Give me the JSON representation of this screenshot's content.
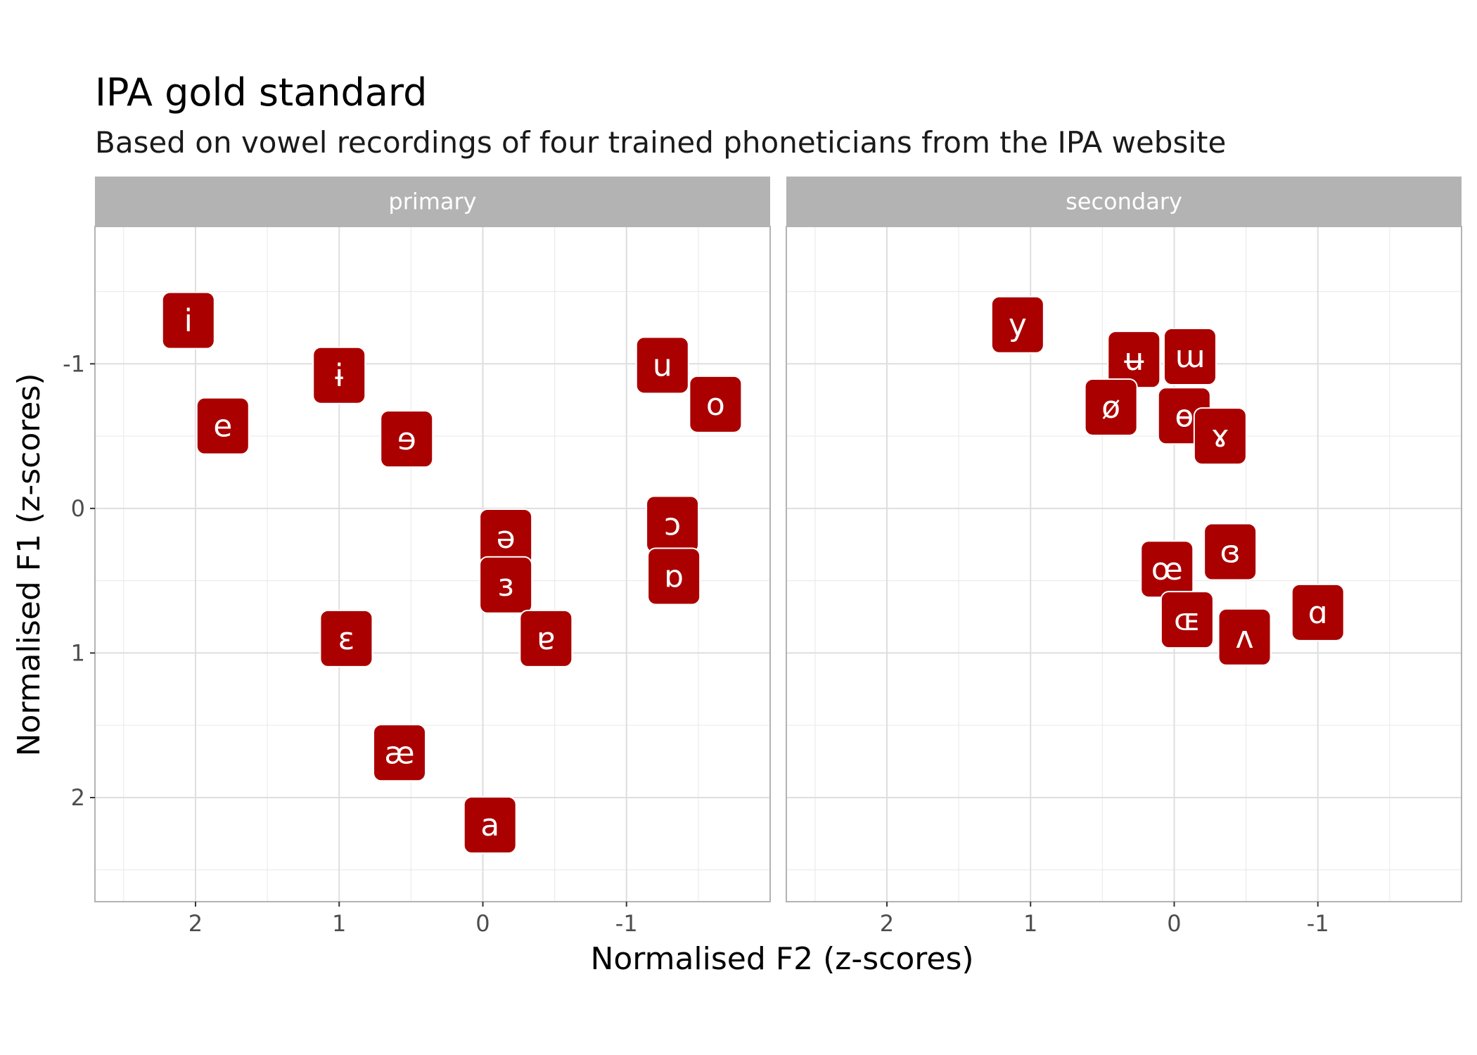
{
  "chart_data": {
    "type": "scatter",
    "title": "IPA gold standard",
    "subtitle": "Based on vowel recordings of four trained phoneticians from the IPA website",
    "xlabel": "Normalised F2 (z-scores)",
    "ylabel": "Normalised F1 (z-scores)",
    "x_reversed": true,
    "y_reversed": true,
    "xlim": [
      2.7,
      -2.0
    ],
    "ylim": [
      -1.95,
      2.72
    ],
    "x_ticks": [
      2,
      1,
      0,
      -1
    ],
    "x_tick_labels": [
      "2",
      "1",
      "0",
      "-1"
    ],
    "y_ticks": [
      -1,
      0,
      1,
      2
    ],
    "y_tick_labels": [
      "-1",
      "0",
      "1",
      "2"
    ],
    "grid": true,
    "label_color": "#AA0000",
    "label_text_color": "#FFFFFF",
    "panels": [
      {
        "name": "primary",
        "points": [
          {
            "label": "i",
            "x": 2.05,
            "y": -1.3
          },
          {
            "label": "ɨ",
            "x": 1.0,
            "y": -0.92
          },
          {
            "label": "u",
            "x": -1.25,
            "y": -0.99
          },
          {
            "label": "e",
            "x": 1.81,
            "y": -0.57
          },
          {
            "label": "ɘ",
            "x": 0.53,
            "y": -0.48
          },
          {
            "label": "o",
            "x": -1.62,
            "y": -0.72
          },
          {
            "label": "ə",
            "x": -0.16,
            "y": 0.2
          },
          {
            "label": "ɔ",
            "x": -1.32,
            "y": 0.11
          },
          {
            "label": "ɜ",
            "x": -0.16,
            "y": 0.53
          },
          {
            "label": "ɒ",
            "x": -1.33,
            "y": 0.47
          },
          {
            "label": "ɛ",
            "x": 0.95,
            "y": 0.9
          },
          {
            "label": "ɐ",
            "x": -0.44,
            "y": 0.9
          },
          {
            "label": "æ",
            "x": 0.58,
            "y": 1.69
          },
          {
            "label": "a",
            "x": -0.05,
            "y": 2.19
          }
        ]
      },
      {
        "name": "secondary",
        "points": [
          {
            "label": "y",
            "x": 1.09,
            "y": -1.27
          },
          {
            "label": "ʉ",
            "x": 0.28,
            "y": -1.03
          },
          {
            "label": "ɯ",
            "x": -0.11,
            "y": -1.05
          },
          {
            "label": "ø",
            "x": 0.44,
            "y": -0.7
          },
          {
            "label": "ɵ",
            "x": -0.07,
            "y": -0.64
          },
          {
            "label": "ɤ",
            "x": -0.32,
            "y": -0.5
          },
          {
            "label": "ɞ",
            "x": -0.39,
            "y": 0.3
          },
          {
            "label": "œ",
            "x": 0.05,
            "y": 0.42
          },
          {
            "label": "ɶ",
            "x": -0.09,
            "y": 0.77
          },
          {
            "label": "ʌ",
            "x": -0.49,
            "y": 0.89
          },
          {
            "label": "ɑ",
            "x": -1.0,
            "y": 0.72
          }
        ]
      }
    ]
  }
}
